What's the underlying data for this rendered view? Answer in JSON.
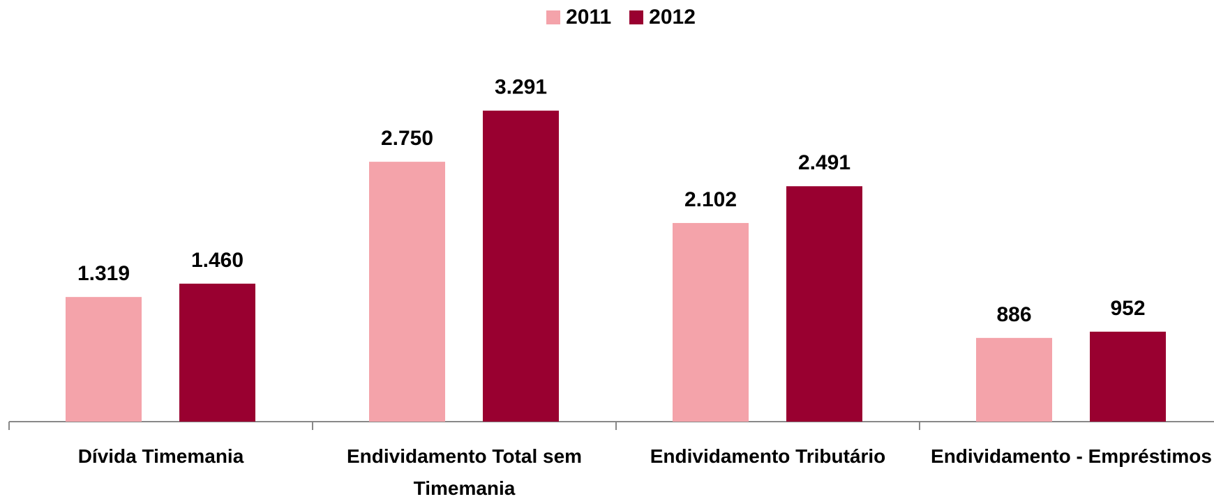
{
  "chart_data": {
    "type": "bar",
    "categories": [
      "Dívida Timemania",
      "Endividamento Total sem Timemania",
      "Endividamento Tributário",
      "Endividamento - Empréstimos"
    ],
    "series": [
      {
        "name": "2011",
        "color": "#f4a3aa",
        "values": [
          1319,
          2750,
          2102,
          886
        ],
        "value_labels": [
          "1.319",
          "2.750",
          "2.102",
          "886"
        ]
      },
      {
        "name": "2012",
        "color": "#990030",
        "values": [
          1460,
          3291,
          2491,
          952
        ],
        "value_labels": [
          "1.460",
          "3.291",
          "2.491",
          "952"
        ]
      }
    ],
    "legend": "top"
  }
}
